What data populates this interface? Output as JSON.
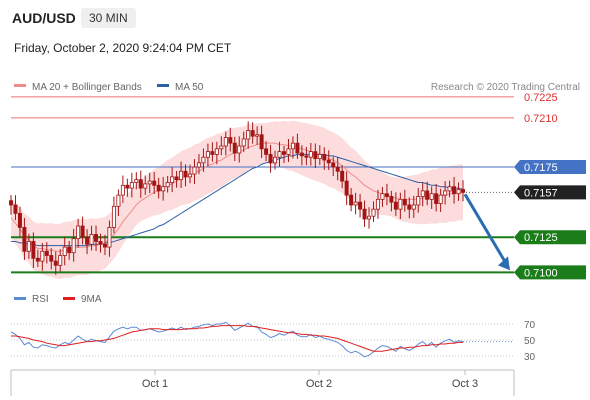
{
  "header": {
    "pair": "AUD/USD",
    "timeframe": "30 MIN",
    "timestamp": "Friday, October 2, 2020 9:24:04 PM CET",
    "copyright": "Research © 2020 Trading Central"
  },
  "colors": {
    "ma20": "#f08c8c",
    "ma50": "#2e5fa8",
    "bollinger": "#fbd3d3",
    "candle": "#a31515",
    "support": "#1a7d1a",
    "pivot": "#4472c4",
    "resistance": "#f07070",
    "current": "#222222",
    "arrow": "#2b6cb0",
    "rsi": "#5b8ad6",
    "rsi_ma": "#e02020"
  },
  "chart_data": [
    {
      "type": "candlestick",
      "title": "AUD/USD",
      "legend": [
        {
          "name": "MA 20 + Bollinger Bands",
          "color": "#f08c8c"
        },
        {
          "name": "MA 50",
          "color": "#2e5fa8"
        }
      ],
      "ylim": [
        0.7086,
        0.7237
      ],
      "x_ticks": [
        "Oct 1",
        "Oct 2",
        "Oct 3"
      ],
      "price_levels": [
        {
          "value": 0.7225,
          "label": "0.7225",
          "kind": "resistance"
        },
        {
          "value": 0.721,
          "label": "0.7210",
          "kind": "resistance"
        },
        {
          "value": 0.7175,
          "label": "0.7175",
          "kind": "pivot"
        },
        {
          "value": 0.7157,
          "label": "0.7157",
          "kind": "current"
        },
        {
          "value": 0.7125,
          "label": "0.7125",
          "kind": "support"
        },
        {
          "value": 0.71,
          "label": "0.7100",
          "kind": "support"
        }
      ],
      "close_series": [
        0.7148,
        0.7142,
        0.7132,
        0.7115,
        0.7122,
        0.711,
        0.7108,
        0.7115,
        0.7112,
        0.7108,
        0.7105,
        0.7112,
        0.7118,
        0.7114,
        0.7124,
        0.7133,
        0.7125,
        0.712,
        0.7127,
        0.7122,
        0.712,
        0.7118,
        0.7132,
        0.7147,
        0.7155,
        0.7162,
        0.716,
        0.7164,
        0.7166,
        0.716,
        0.7163,
        0.7165,
        0.7162,
        0.7158,
        0.7161,
        0.7164,
        0.7168,
        0.7166,
        0.7172,
        0.7168,
        0.717,
        0.7175,
        0.7178,
        0.7182,
        0.7186,
        0.7184,
        0.7188,
        0.719,
        0.7196,
        0.7192,
        0.7185,
        0.719,
        0.7195,
        0.7201,
        0.7197,
        0.7198,
        0.7188,
        0.7184,
        0.7178,
        0.7182,
        0.7186,
        0.7184,
        0.7188,
        0.7192,
        0.7185,
        0.7183,
        0.7182,
        0.7186,
        0.7181,
        0.7184,
        0.718,
        0.7178,
        0.7175,
        0.7172,
        0.7165,
        0.7155,
        0.7148,
        0.715,
        0.7145,
        0.7138,
        0.714,
        0.7145,
        0.7152,
        0.7156,
        0.7154,
        0.715,
        0.7145,
        0.7152,
        0.7148,
        0.7145,
        0.7148,
        0.7154,
        0.7158,
        0.7152,
        0.7156,
        0.7149,
        0.7155,
        0.7158,
        0.7161,
        0.7156,
        0.7159,
        0.7157
      ],
      "ma20": [
        0.7139,
        0.7135,
        0.7131,
        0.7126,
        0.7123,
        0.7119,
        0.7117,
        0.7117,
        0.7116,
        0.7116,
        0.7115,
        0.7115,
        0.7116,
        0.7116,
        0.7117,
        0.7118,
        0.7118,
        0.7118,
        0.7119,
        0.7119,
        0.712,
        0.7121,
        0.7124,
        0.7127,
        0.7131,
        0.7136,
        0.714,
        0.7144,
        0.7148,
        0.7151,
        0.7153,
        0.7155,
        0.7157,
        0.7158,
        0.716,
        0.7162,
        0.7163,
        0.7165,
        0.7167,
        0.7168,
        0.7169,
        0.7171,
        0.7172,
        0.7174,
        0.7176,
        0.7177,
        0.7179,
        0.718,
        0.7182,
        0.7184,
        0.7185,
        0.7186,
        0.7187,
        0.7189,
        0.719,
        0.7191,
        0.7192,
        0.7192,
        0.7192,
        0.7192,
        0.7191,
        0.7191,
        0.719,
        0.719,
        0.7189,
        0.7188,
        0.7187,
        0.7186,
        0.7185,
        0.7184,
        0.7183,
        0.7181,
        0.718,
        0.7178,
        0.7176,
        0.7173,
        0.717,
        0.7168,
        0.7165,
        0.7162,
        0.716,
        0.7158,
        0.7157,
        0.7156,
        0.7155,
        0.7154,
        0.7153,
        0.7152,
        0.7152,
        0.7152,
        0.7152,
        0.7152,
        0.7153,
        0.7153,
        0.7154,
        0.7154,
        0.7155,
        0.7155,
        0.7156,
        0.7156,
        0.7157,
        0.7157
      ],
      "ma50": [
        0.7122,
        0.7122,
        0.7121,
        0.7121,
        0.712,
        0.712,
        0.7119,
        0.7119,
        0.7119,
        0.7119,
        0.7119,
        0.7119,
        0.7119,
        0.7119,
        0.7119,
        0.7119,
        0.7119,
        0.7119,
        0.712,
        0.712,
        0.712,
        0.7121,
        0.7121,
        0.7122,
        0.7123,
        0.7124,
        0.7125,
        0.7126,
        0.7127,
        0.7128,
        0.7129,
        0.713,
        0.7131,
        0.7133,
        0.7134,
        0.7136,
        0.7138,
        0.714,
        0.7142,
        0.7144,
        0.7146,
        0.7148,
        0.715,
        0.7152,
        0.7154,
        0.7156,
        0.7158,
        0.716,
        0.7162,
        0.7164,
        0.7166,
        0.7168,
        0.717,
        0.7172,
        0.7174,
        0.7175,
        0.7177,
        0.7178,
        0.7179,
        0.718,
        0.7181,
        0.7182,
        0.7183,
        0.7183,
        0.7184,
        0.7184,
        0.7184,
        0.7184,
        0.7184,
        0.7184,
        0.7184,
        0.7183,
        0.7183,
        0.7182,
        0.7181,
        0.718,
        0.7179,
        0.7178,
        0.7177,
        0.7176,
        0.7175,
        0.7174,
        0.7173,
        0.7172,
        0.7171,
        0.717,
        0.7169,
        0.7168,
        0.7167,
        0.7166,
        0.7165,
        0.7164,
        0.7164,
        0.7163,
        0.7162,
        0.7162,
        0.7161,
        0.7161,
        0.716,
        0.716,
        0.716,
        0.7159
      ],
      "forecast": {
        "from": 0.7157,
        "to": 0.71
      }
    },
    {
      "type": "line",
      "title": "",
      "legend": [
        {
          "name": "RSI",
          "color": "#5b8ad6"
        },
        {
          "name": "9MA",
          "color": "#e02020"
        }
      ],
      "ylim": [
        20,
        80
      ],
      "y_ticks": [
        70,
        50,
        30
      ],
      "series": [
        {
          "name": "RSI",
          "values": [
            60,
            57,
            52,
            44,
            47,
            41,
            40,
            44,
            43,
            41,
            40,
            44,
            47,
            45,
            50,
            55,
            51,
            48,
            51,
            49,
            48,
            47,
            54,
            61,
            64,
            66,
            64,
            66,
            66,
            62,
            63,
            64,
            62,
            60,
            61,
            63,
            65,
            63,
            66,
            63,
            64,
            66,
            67,
            69,
            70,
            68,
            70,
            70,
            72,
            68,
            62,
            65,
            68,
            71,
            67,
            67,
            60,
            57,
            53,
            55,
            58,
            56,
            59,
            61,
            56,
            54,
            54,
            57,
            53,
            55,
            52,
            51,
            49,
            47,
            43,
            37,
            34,
            36,
            33,
            29,
            31,
            35,
            40,
            43,
            42,
            39,
            36,
            42,
            39,
            37,
            40,
            45,
            48,
            43,
            47,
            41,
            46,
            49,
            51,
            47,
            49,
            48
          ]
        },
        {
          "name": "9MA",
          "values": [
            55,
            55,
            54,
            53,
            52,
            50,
            49,
            48,
            46,
            45,
            44,
            43,
            43,
            44,
            45,
            46,
            47,
            48,
            48,
            49,
            49,
            50,
            51,
            52,
            54,
            56,
            58,
            60,
            61,
            62,
            63,
            64,
            64,
            64,
            63,
            63,
            63,
            63,
            63,
            64,
            64,
            64,
            65,
            65,
            66,
            67,
            67,
            68,
            68,
            68,
            68,
            68,
            68,
            67,
            67,
            66,
            65,
            64,
            63,
            62,
            61,
            60,
            59,
            59,
            58,
            57,
            57,
            56,
            56,
            55,
            55,
            54,
            53,
            52,
            50,
            48,
            46,
            44,
            42,
            40,
            38,
            36,
            36,
            36,
            37,
            38,
            39,
            40,
            40,
            41,
            41,
            42,
            43,
            43,
            44,
            44,
            45,
            45,
            46,
            46,
            47,
            47
          ]
        }
      ]
    }
  ]
}
